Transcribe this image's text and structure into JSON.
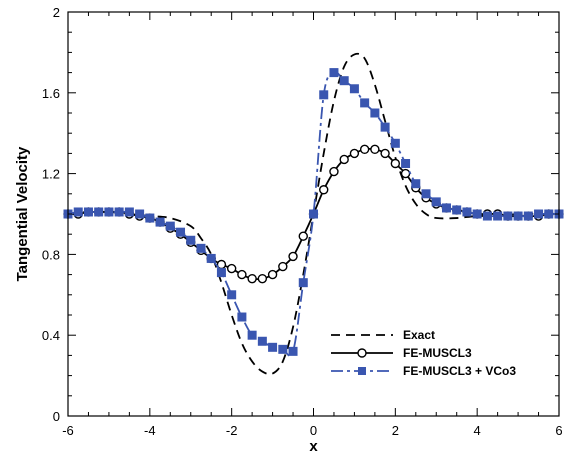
{
  "chart_data": {
    "type": "line",
    "title": "",
    "xlabel": "x",
    "ylabel": "Tangential Velocity",
    "xlim": [
      -6,
      6
    ],
    "ylim": [
      0,
      2
    ],
    "xticks": [
      -6,
      -4,
      -2,
      0,
      2,
      4,
      6
    ],
    "yticks": [
      0,
      0.4,
      0.8,
      1.2,
      1.6,
      2
    ],
    "xtick_labels": [
      "-6",
      "-4",
      "-2",
      "0",
      "2",
      "4",
      "6"
    ],
    "ytick_labels": [
      "0",
      "0.4",
      "0.8",
      "1.2",
      "1.6",
      "2"
    ],
    "legend_position": "lower-right",
    "grid": false,
    "series": [
      {
        "name": "Exact",
        "color": "#000000",
        "line_style": "dashed",
        "marker": "none",
        "x": [
          -6,
          -5.5,
          -5,
          -4.5,
          -4,
          -3.5,
          -3,
          -2.75,
          -2.5,
          -2.25,
          -2,
          -1.75,
          -1.5,
          -1.25,
          -1,
          -0.75,
          -0.5,
          -0.25,
          0,
          0.25,
          0.5,
          0.75,
          1,
          1.25,
          1.5,
          1.75,
          2,
          2.25,
          2.5,
          2.75,
          3,
          3.5,
          4,
          4.5,
          5,
          5.5,
          6
        ],
        "y": [
          1.0,
          1.01,
          1.01,
          1.0,
          0.99,
          0.98,
          0.94,
          0.88,
          0.8,
          0.66,
          0.5,
          0.36,
          0.27,
          0.22,
          0.21,
          0.27,
          0.44,
          0.7,
          1.0,
          1.3,
          1.56,
          1.73,
          1.79,
          1.77,
          1.64,
          1.46,
          1.28,
          1.14,
          1.05,
          1.0,
          0.98,
          0.98,
          0.99,
          0.99,
          1.0,
          1.0,
          1.0
        ]
      },
      {
        "name": "FE-MUSCL3",
        "color": "#000000",
        "line_style": "solid",
        "marker": "circle",
        "x": [
          -6,
          -5.75,
          -5.5,
          -5.25,
          -5,
          -4.75,
          -4.5,
          -4.25,
          -4,
          -3.75,
          -3.5,
          -3.25,
          -3,
          -2.75,
          -2.5,
          -2.25,
          -2,
          -1.75,
          -1.5,
          -1.25,
          -1,
          -0.75,
          -0.5,
          -0.25,
          0,
          0.25,
          0.5,
          0.75,
          1,
          1.25,
          1.5,
          1.75,
          2,
          2.25,
          2.5,
          2.75,
          3,
          3.25,
          3.5,
          3.75,
          4,
          4.25,
          4.5,
          4.75,
          5,
          5.25,
          5.5,
          5.75,
          6
        ],
        "y": [
          1.0,
          1.0,
          1.01,
          1.01,
          1.01,
          1.01,
          1.0,
          0.99,
          0.98,
          0.96,
          0.93,
          0.9,
          0.86,
          0.82,
          0.78,
          0.75,
          0.73,
          0.7,
          0.68,
          0.68,
          0.7,
          0.74,
          0.79,
          0.89,
          1.0,
          1.12,
          1.21,
          1.27,
          1.3,
          1.32,
          1.32,
          1.3,
          1.25,
          1.2,
          1.13,
          1.08,
          1.05,
          1.03,
          1.02,
          1.01,
          1.0,
          1.0,
          1.0,
          0.99,
          0.99,
          0.99,
          0.99,
          1.0,
          1.0
        ]
      },
      {
        "name": "FE-MUSCL3 + VCo3",
        "color": "#3a56b0",
        "line_style": "dashdot",
        "marker": "square",
        "x": [
          -6,
          -5.75,
          -5.5,
          -5.25,
          -5,
          -4.75,
          -4.5,
          -4.25,
          -4,
          -3.75,
          -3.5,
          -3.25,
          -3,
          -2.75,
          -2.5,
          -2.25,
          -2,
          -1.75,
          -1.5,
          -1.25,
          -1,
          -0.75,
          -0.5,
          -0.25,
          0,
          0.25,
          0.5,
          0.75,
          1,
          1.25,
          1.5,
          1.75,
          2,
          2.25,
          2.5,
          2.75,
          3,
          3.25,
          3.5,
          3.75,
          4,
          4.25,
          4.5,
          4.75,
          5,
          5.25,
          5.5,
          5.75,
          6
        ],
        "y": [
          1.0,
          1.01,
          1.01,
          1.01,
          1.01,
          1.01,
          1.01,
          1.0,
          0.98,
          0.96,
          0.94,
          0.91,
          0.87,
          0.83,
          0.78,
          0.71,
          0.6,
          0.49,
          0.4,
          0.37,
          0.34,
          0.33,
          0.32,
          0.66,
          1.0,
          1.59,
          1.7,
          1.66,
          1.62,
          1.55,
          1.5,
          1.43,
          1.35,
          1.25,
          1.15,
          1.1,
          1.06,
          1.03,
          1.02,
          1.01,
          1.0,
          0.99,
          0.99,
          0.99,
          0.99,
          0.99,
          1.0,
          1.0,
          1.0
        ]
      }
    ]
  }
}
